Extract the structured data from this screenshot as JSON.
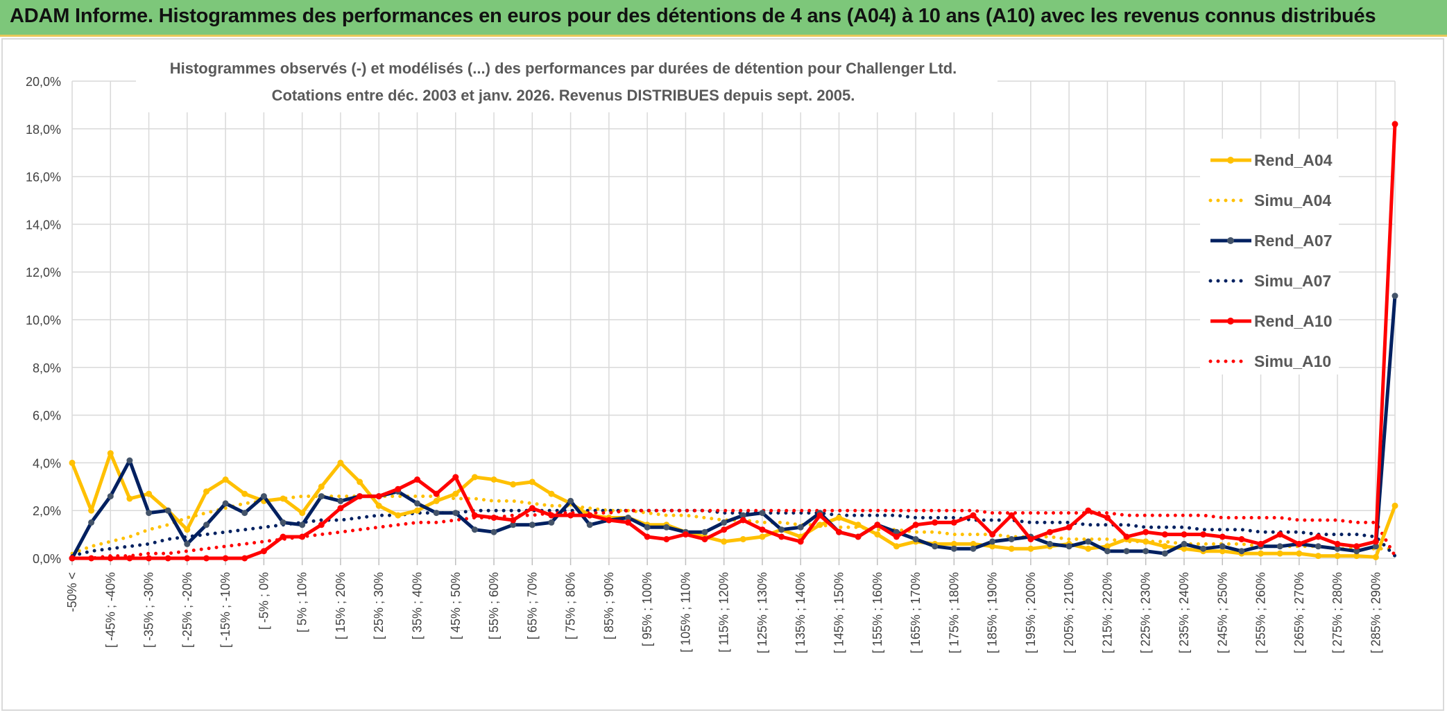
{
  "banner": {
    "title": "ADAM Informe. Histogrammes des performances en euros pour des détentions de 4 ans (A04) à 10 ans (A10) avec les revenus connus distribués"
  },
  "colors": {
    "banner_bg": "#7dc77a",
    "rend_a04": "#ffc000",
    "rend_a07": "#002060",
    "rend_a10": "#ff0000",
    "grid": "#d9d9d9"
  },
  "chart_data": {
    "type": "line",
    "title": "Histogrammes observés (-) et modélisés (...) des performances par durées de détention pour Challenger Ltd.",
    "subtitle": "Cotations entre déc. 2003 et janv. 2026. Revenus DISTRIBUES depuis sept. 2005.",
    "xlabel": "",
    "ylabel": "",
    "ylim": [
      0,
      20
    ],
    "yticks": [
      "0,0%",
      "2,0%",
      "4,0%",
      "6,0%",
      "8,0%",
      "10,0%",
      "12,0%",
      "14,0%",
      "16,0%",
      "18,0%",
      "20,0%"
    ],
    "legend_position": "right",
    "x_tick_labels": [
      "-50% <",
      "[ -45% ; -40%",
      "[ -35% ; -30%",
      "[ -25% ; -20%",
      "[ -15% ; -10%",
      "[ -5% ; 0%",
      "[ 5% ; 10%",
      "[ 15% ; 20%",
      "[ 25% ; 30%",
      "[ 35% ; 40%",
      "[ 45% ; 50%",
      "[ 55% ; 60%",
      "[ 65% ; 70%",
      "[ 75% ; 80%",
      "[ 85% ; 90%",
      "[ 95% ; 100%",
      "[ 105% ; 110%",
      "[ 115% ; 120%",
      "[ 125% ; 130%",
      "[ 135% ; 140%",
      "[ 145% ; 150%",
      "[ 155% ; 160%",
      "[ 165% ; 170%",
      "[ 175% ; 180%",
      "[ 185% ; 190%",
      "[ 195% ; 200%",
      "[ 205% ; 210%",
      "[ 215% ; 220%",
      "[ 225% ; 230%",
      "[ 235% ; 240%",
      "[ 245% ; 250%",
      "[ 255% ; 260%",
      "[ 265% ; 270%",
      "[ 275% ; 280%",
      "[ 285% ; 290%"
    ],
    "num_points": 70,
    "series": [
      {
        "name": "Rend_A04",
        "style": "solid",
        "values": [
          4.0,
          2.0,
          4.4,
          2.5,
          2.7,
          2.0,
          1.2,
          2.8,
          3.3,
          2.7,
          2.4,
          2.5,
          1.9,
          3.0,
          4.0,
          3.2,
          2.2,
          1.8,
          2.0,
          2.4,
          2.7,
          3.4,
          3.3,
          3.1,
          3.2,
          2.7,
          2.3,
          1.8,
          1.7,
          1.7,
          1.4,
          1.4,
          1.1,
          0.9,
          0.7,
          0.8,
          0.9,
          1.2,
          0.9,
          1.4,
          1.7,
          1.4,
          1.0,
          0.5,
          0.7,
          0.6,
          0.6,
          0.6,
          0.5,
          0.4,
          0.4,
          0.5,
          0.6,
          0.4,
          0.5,
          0.8,
          0.7,
          0.5,
          0.4,
          0.3,
          0.3,
          0.2,
          0.2,
          0.2,
          0.2,
          0.1,
          0.1,
          0.1,
          0.05,
          2.2
        ]
      },
      {
        "name": "Simu_A04",
        "style": "dotted",
        "values": [
          0.2,
          0.5,
          0.7,
          0.9,
          1.2,
          1.4,
          1.7,
          1.9,
          2.1,
          2.3,
          2.4,
          2.5,
          2.6,
          2.6,
          2.6,
          2.6,
          2.6,
          2.6,
          2.6,
          2.6,
          2.5,
          2.5,
          2.4,
          2.4,
          2.3,
          2.2,
          2.2,
          2.1,
          2.0,
          2.0,
          1.9,
          1.8,
          1.8,
          1.7,
          1.6,
          1.6,
          1.5,
          1.5,
          1.4,
          1.4,
          1.3,
          1.3,
          1.2,
          1.2,
          1.1,
          1.1,
          1.0,
          1.0,
          1.0,
          0.9,
          0.9,
          0.9,
          0.8,
          0.8,
          0.8,
          0.7,
          0.7,
          0.7,
          0.6,
          0.6,
          0.6,
          0.6,
          0.5,
          0.5,
          0.5,
          0.5,
          0.4,
          0.4,
          0.4,
          0.4
        ]
      },
      {
        "name": "Rend_A07",
        "style": "solid",
        "values": [
          0.0,
          1.5,
          2.6,
          4.1,
          1.9,
          2.0,
          0.6,
          1.4,
          2.3,
          1.9,
          2.6,
          1.5,
          1.4,
          2.6,
          2.4,
          2.6,
          2.6,
          2.8,
          2.3,
          1.9,
          1.9,
          1.2,
          1.1,
          1.4,
          1.4,
          1.5,
          2.4,
          1.4,
          1.6,
          1.7,
          1.3,
          1.3,
          1.1,
          1.1,
          1.5,
          1.8,
          1.9,
          1.2,
          1.3,
          1.9,
          1.1,
          0.9,
          1.4,
          1.1,
          0.8,
          0.5,
          0.4,
          0.4,
          0.7,
          0.8,
          0.9,
          0.6,
          0.5,
          0.7,
          0.3,
          0.3,
          0.3,
          0.2,
          0.6,
          0.4,
          0.5,
          0.3,
          0.5,
          0.5,
          0.6,
          0.5,
          0.4,
          0.3,
          0.5,
          11.0
        ]
      },
      {
        "name": "Simu_A07",
        "style": "dotted",
        "values": [
          0.1,
          0.3,
          0.4,
          0.5,
          0.6,
          0.8,
          0.9,
          1.0,
          1.1,
          1.2,
          1.3,
          1.4,
          1.5,
          1.6,
          1.6,
          1.7,
          1.8,
          1.8,
          1.9,
          1.9,
          1.9,
          2.0,
          2.0,
          2.0,
          2.0,
          2.0,
          2.0,
          2.0,
          2.0,
          2.0,
          2.0,
          2.0,
          2.0,
          2.0,
          1.9,
          1.9,
          1.9,
          1.9,
          1.9,
          1.9,
          1.8,
          1.8,
          1.8,
          1.8,
          1.7,
          1.7,
          1.7,
          1.6,
          1.6,
          1.6,
          1.5,
          1.5,
          1.5,
          1.4,
          1.4,
          1.4,
          1.3,
          1.3,
          1.3,
          1.2,
          1.2,
          1.2,
          1.1,
          1.1,
          1.1,
          1.0,
          1.0,
          1.0,
          0.9,
          0.1
        ]
      },
      {
        "name": "Rend_A10",
        "style": "solid",
        "values": [
          0.0,
          0.0,
          0.0,
          0.0,
          0.0,
          0.0,
          0.0,
          0.0,
          0.0,
          0.0,
          0.3,
          0.9,
          0.9,
          1.4,
          2.1,
          2.6,
          2.6,
          2.9,
          3.3,
          2.7,
          3.4,
          1.8,
          1.7,
          1.6,
          2.1,
          1.8,
          1.8,
          1.8,
          1.6,
          1.5,
          0.9,
          0.8,
          1.0,
          0.8,
          1.2,
          1.6,
          1.2,
          0.9,
          0.7,
          1.8,
          1.1,
          0.9,
          1.4,
          0.9,
          1.4,
          1.5,
          1.5,
          1.8,
          1.0,
          1.8,
          0.8,
          1.1,
          1.3,
          2.0,
          1.7,
          0.9,
          1.1,
          1.0,
          1.0,
          1.0,
          0.9,
          0.8,
          0.6,
          1.0,
          0.6,
          0.9,
          0.6,
          0.5,
          0.7,
          18.2
        ]
      },
      {
        "name": "Simu_A10",
        "style": "dotted",
        "values": [
          0.0,
          0.0,
          0.1,
          0.1,
          0.2,
          0.2,
          0.3,
          0.4,
          0.5,
          0.6,
          0.7,
          0.8,
          0.9,
          1.0,
          1.1,
          1.2,
          1.3,
          1.4,
          1.5,
          1.5,
          1.6,
          1.7,
          1.7,
          1.8,
          1.8,
          1.9,
          1.9,
          1.9,
          1.9,
          2.0,
          2.0,
          2.0,
          2.0,
          2.0,
          2.0,
          2.0,
          2.0,
          2.0,
          2.0,
          2.0,
          2.0,
          2.0,
          2.0,
          2.0,
          2.0,
          2.0,
          2.0,
          2.0,
          1.9,
          1.9,
          1.9,
          1.9,
          1.9,
          1.9,
          1.9,
          1.8,
          1.8,
          1.8,
          1.8,
          1.8,
          1.7,
          1.7,
          1.7,
          1.7,
          1.6,
          1.6,
          1.6,
          1.5,
          1.5,
          0.1
        ]
      }
    ]
  }
}
